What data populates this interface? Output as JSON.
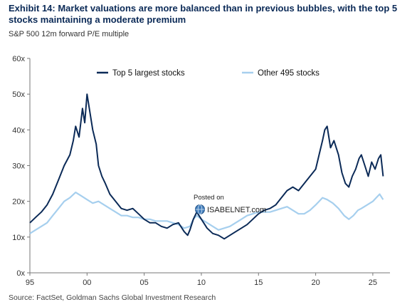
{
  "title": "Exhibit 14: Market valuations are more balanced than in previous bubbles, with the top 5 stocks maintaining a moderate premium",
  "subtitle": "S&P 500 12m forward P/E multiple",
  "source": "Source: FactSet, Goldman Sachs Global Investment Research",
  "watermark": {
    "line1": "Posted on",
    "line2": "ISABELNET.com"
  },
  "colors": {
    "top5": "#0b2a57",
    "other": "#a6cfee",
    "title": "#0b2a57"
  },
  "chart_data": {
    "type": "line",
    "xlim": [
      1995,
      2026.5
    ],
    "ylim": [
      0,
      60
    ],
    "y_ticks": [
      0,
      10,
      20,
      30,
      40,
      50,
      60
    ],
    "y_tick_labels": [
      "0x",
      "10x",
      "20x",
      "30x",
      "40x",
      "50x",
      "60x"
    ],
    "x_ticks": [
      1995,
      2000,
      2005,
      2010,
      2015,
      2020,
      2025
    ],
    "x_tick_labels": [
      "95",
      "00",
      "05",
      "10",
      "15",
      "20",
      "25"
    ],
    "grid": false,
    "legend_position": "top",
    "series": [
      {
        "name": "Top 5 largest stocks",
        "color": "#0b2a57",
        "x": [
          1995.0,
          1995.5,
          1996.0,
          1996.5,
          1997.0,
          1997.5,
          1998.0,
          1998.5,
          1998.8,
          1999.0,
          1999.3,
          1999.6,
          1999.8,
          2000.0,
          2000.2,
          2000.5,
          2000.8,
          2001.0,
          2001.3,
          2001.6,
          2002.0,
          2002.5,
          2003.0,
          2003.5,
          2004.0,
          2004.5,
          2005.0,
          2005.5,
          2006.0,
          2006.5,
          2007.0,
          2007.5,
          2008.0,
          2008.5,
          2008.8,
          2009.0,
          2009.3,
          2009.6,
          2010.0,
          2010.5,
          2011.0,
          2011.5,
          2012.0,
          2012.5,
          2013.0,
          2013.5,
          2014.0,
          2014.5,
          2015.0,
          2015.5,
          2016.0,
          2016.5,
          2017.0,
          2017.5,
          2018.0,
          2018.5,
          2019.0,
          2019.5,
          2020.0,
          2020.3,
          2020.6,
          2020.8,
          2021.0,
          2021.3,
          2021.6,
          2022.0,
          2022.3,
          2022.6,
          2022.9,
          2023.2,
          2023.5,
          2023.8,
          2024.0,
          2024.3,
          2024.6,
          2024.9,
          2025.2,
          2025.5,
          2025.7,
          2025.9
        ],
        "values": [
          14,
          15.5,
          17,
          19,
          22,
          26,
          30,
          33,
          37,
          41,
          38,
          46,
          42,
          50,
          46,
          40,
          36,
          30,
          27,
          25,
          22,
          20,
          18,
          17.5,
          18,
          16.5,
          15,
          14,
          14,
          13,
          12.5,
          13.5,
          14,
          11.5,
          10.5,
          12,
          15,
          17,
          15,
          12.5,
          11,
          10.5,
          9.5,
          10.5,
          11.5,
          12.5,
          13.5,
          15,
          16.5,
          17.5,
          18,
          19,
          21,
          23,
          24,
          23,
          25,
          27,
          29,
          33,
          37,
          40,
          41,
          35,
          37,
          33,
          28,
          25,
          24,
          27,
          29,
          32,
          33,
          30,
          27,
          31,
          29,
          32,
          33,
          27
        ]
      },
      {
        "name": "Other 495 stocks",
        "color": "#a6cfee",
        "x": [
          1995.0,
          1995.5,
          1996.0,
          1996.5,
          1997.0,
          1997.5,
          1998.0,
          1998.5,
          1999.0,
          1999.5,
          2000.0,
          2000.5,
          2001.0,
          2001.5,
          2002.0,
          2002.5,
          2003.0,
          2003.5,
          2004.0,
          2004.5,
          2005.0,
          2005.5,
          2006.0,
          2006.5,
          2007.0,
          2007.5,
          2008.0,
          2008.5,
          2009.0,
          2009.3,
          2009.6,
          2010.0,
          2010.5,
          2011.0,
          2011.5,
          2012.0,
          2012.5,
          2013.0,
          2013.5,
          2014.0,
          2014.5,
          2015.0,
          2015.5,
          2016.0,
          2016.5,
          2017.0,
          2017.5,
          2018.0,
          2018.5,
          2019.0,
          2019.5,
          2020.0,
          2020.3,
          2020.6,
          2021.0,
          2021.5,
          2022.0,
          2022.5,
          2022.9,
          2023.3,
          2023.7,
          2024.0,
          2024.5,
          2025.0,
          2025.3,
          2025.6,
          2025.9
        ],
        "values": [
          11,
          12,
          13,
          14,
          16,
          18,
          20,
          21,
          22.5,
          21.5,
          20.5,
          19.5,
          20,
          19,
          18,
          17,
          16,
          16,
          15.5,
          15.5,
          15,
          15,
          14.5,
          14.5,
          14.5,
          14,
          13.5,
          12.5,
          13,
          15,
          16,
          15,
          14,
          13,
          12,
          12.5,
          13,
          14,
          15,
          16,
          16.5,
          17,
          17,
          17,
          17.5,
          18,
          18.5,
          17.5,
          16.5,
          16.5,
          17.5,
          19,
          20,
          21,
          20.5,
          19.5,
          18,
          16,
          15,
          16,
          17.5,
          18,
          19,
          20,
          21,
          22,
          20.5
        ]
      }
    ]
  }
}
